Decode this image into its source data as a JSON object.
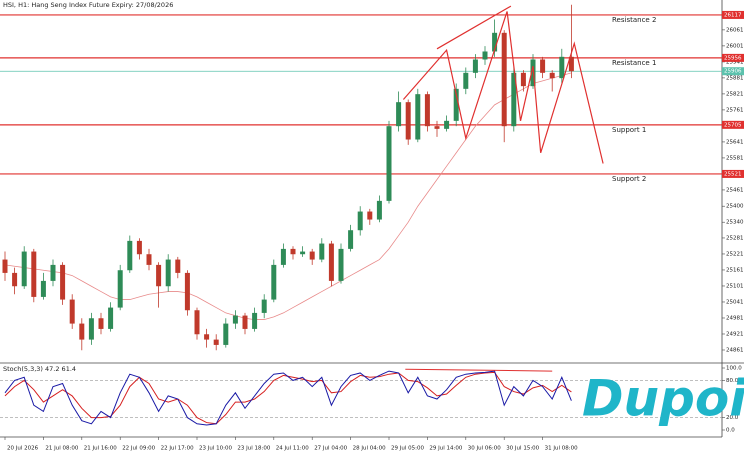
{
  "chart_data": {
    "type": "candlestick",
    "title": "HSI, H1: Hang Seng Index Future Expiry: 27/08/2026",
    "ylim": [
      24816,
      26173
    ],
    "yticks": [
      26061,
      26001,
      25941,
      25881,
      25821,
      25761,
      25641,
      25581,
      25461,
      25400,
      25340,
      25281,
      25221,
      25161,
      25101,
      25041,
      24981,
      24921,
      24861
    ],
    "categories": [
      "20 Jul 2026",
      null,
      null,
      null,
      "21 Jul 08:00",
      null,
      null,
      null,
      "21 Jul 16:00",
      null,
      null,
      null,
      "22 Jul 09:00",
      null,
      null,
      null,
      "22 Jul 17:00",
      null,
      null,
      null,
      "23 Jul 10:00",
      null,
      null,
      null,
      "23 Jul 18:00",
      null,
      null,
      null,
      "24 Jul 11:00",
      null,
      null,
      null,
      "27 Jul 04:00",
      null,
      null,
      null,
      "28 Jul 04:00",
      null,
      null,
      null,
      "29 Jul 05:00",
      null,
      null,
      null,
      "29 Jul 14:00",
      null,
      null,
      null,
      "30 Jul 06:00",
      null,
      null,
      null,
      "30 Jul 15:00",
      null,
      null,
      null,
      "31 Jul 08:00",
      null,
      null,
      null
    ],
    "candles": {
      "up_color": "#2e8b57",
      "down_color": "#c0392b",
      "open": [
        25200,
        25150,
        25100,
        25230,
        25060,
        25120,
        25180,
        25050,
        24960,
        24900,
        24980,
        24940,
        25020,
        25160,
        25270,
        25220,
        25180,
        25100,
        25200,
        25150,
        25010,
        24920,
        24900,
        24880,
        24960,
        24990,
        24940,
        25000,
        25050,
        25180,
        25240,
        25220,
        25230,
        25200,
        25260,
        25120,
        25240,
        25310,
        25380,
        25350,
        25420,
        25700,
        25790,
        25650,
        25820,
        25700,
        25690,
        25720,
        25840,
        25900,
        25950,
        25980,
        26050,
        25700,
        25900,
        25850,
        25950,
        25900,
        25880,
        25960
      ],
      "high": [
        25230,
        25170,
        25250,
        25240,
        25150,
        25200,
        25190,
        25070,
        24980,
        25000,
        25000,
        25040,
        25180,
        25290,
        25280,
        25240,
        25190,
        25220,
        25210,
        25160,
        25020,
        24940,
        24920,
        24980,
        25010,
        25000,
        25020,
        25070,
        25200,
        25260,
        25250,
        25250,
        25240,
        25280,
        25270,
        25260,
        25330,
        25400,
        25390,
        25440,
        25720,
        25830,
        25800,
        25840,
        25830,
        25720,
        25740,
        25860,
        25920,
        25970,
        26000,
        26100,
        26060,
        25920,
        25910,
        25970,
        25960,
        25910,
        25990,
        26155
      ],
      "low": [
        25120,
        25070,
        25090,
        25040,
        25050,
        25100,
        25030,
        24940,
        24860,
        24880,
        24920,
        24930,
        25010,
        25150,
        25200,
        25160,
        25020,
        25080,
        25130,
        24990,
        24900,
        24870,
        24860,
        24870,
        24940,
        24920,
        24930,
        24980,
        25040,
        25170,
        25200,
        25210,
        25180,
        25190,
        25100,
        25110,
        25230,
        25290,
        25330,
        25340,
        25410,
        25680,
        25630,
        25640,
        25680,
        25660,
        25680,
        25700,
        25820,
        25880,
        25930,
        25960,
        25640,
        25680,
        25830,
        25840,
        25880,
        25830,
        25860,
        25880
      ],
      "close": [
        25150,
        25100,
        25230,
        25060,
        25120,
        25180,
        25050,
        24960,
        24900,
        24980,
        24940,
        25020,
        25160,
        25270,
        25220,
        25180,
        25100,
        25200,
        25150,
        25010,
        24920,
        24900,
        24880,
        24960,
        24990,
        24940,
        25000,
        25050,
        25180,
        25240,
        25220,
        25230,
        25200,
        25260,
        25120,
        25240,
        25310,
        25380,
        25350,
        25420,
        25700,
        25790,
        25650,
        25820,
        25700,
        25690,
        25720,
        25840,
        25900,
        25950,
        25980,
        26050,
        25700,
        25900,
        25850,
        25950,
        25900,
        25880,
        25960,
        25906
      ]
    },
    "ma": {
      "color": "#e88a8a",
      "values": [
        25180,
        25175,
        25170,
        25165,
        25160,
        25155,
        25150,
        25140,
        25120,
        25100,
        25080,
        25060,
        25050,
        25050,
        25060,
        25070,
        25075,
        25080,
        25080,
        25075,
        25060,
        25040,
        25020,
        25000,
        24990,
        24980,
        24975,
        24975,
        24985,
        25000,
        25020,
        25040,
        25060,
        25080,
        25100,
        25120,
        25140,
        25160,
        25180,
        25200,
        25240,
        25290,
        25340,
        25400,
        25450,
        25500,
        25550,
        25600,
        25650,
        25700,
        25740,
        25780,
        25800,
        25820,
        25840,
        25860,
        25870,
        25880,
        25890,
        25900
      ]
    },
    "levels": [
      {
        "name": "Resistance 2",
        "value": 26117,
        "color": "#e0302f"
      },
      {
        "name": "Resistance 1",
        "value": 25956,
        "color": "#e0302f"
      },
      {
        "name": "Support 1",
        "value": 25705,
        "color": "#e0302f"
      },
      {
        "name": "Support 2",
        "value": 25521,
        "color": "#e0302f"
      }
    ],
    "price_line": {
      "value": 25906,
      "color": "#5cc2ad"
    },
    "pattern": {
      "color": "#e0302f",
      "x": [
        41.5,
        46,
        48,
        52.3,
        53.7,
        55,
        55.8,
        59.3,
        62.3
      ],
      "y": [
        25800,
        25985,
        25655,
        26130,
        25720,
        25925,
        25600,
        26010,
        25560
      ]
    },
    "trendline": {
      "color": "#e0302f",
      "x": [
        45,
        52.7
      ],
      "y": [
        25990,
        26150
      ]
    },
    "stochastic": {
      "label": "Stoch(5,3,3) 47.2 61.4",
      "ylim": [
        0,
        100
      ],
      "yticks": [
        {
          "value": 100,
          "label": "100.0"
        },
        {
          "value": 80,
          "label": "80.0"
        },
        {
          "value": 20,
          "label": "20.0"
        },
        {
          "value": 0,
          "label": "0.0"
        }
      ],
      "levels": [
        80,
        20
      ],
      "k": {
        "color": "#1a1aa6",
        "values": [
          60,
          80,
          85,
          40,
          30,
          70,
          75,
          40,
          15,
          10,
          30,
          20,
          60,
          90,
          85,
          60,
          30,
          55,
          50,
          20,
          10,
          8,
          10,
          40,
          60,
          35,
          55,
          75,
          90,
          92,
          80,
          85,
          70,
          85,
          40,
          70,
          88,
          92,
          80,
          88,
          95,
          92,
          60,
          85,
          55,
          50,
          65,
          85,
          90,
          92,
          93,
          95,
          40,
          70,
          55,
          80,
          70,
          50,
          85,
          47.2
        ]
      },
      "d": {
        "color": "#d62020",
        "values": [
          55,
          70,
          80,
          65,
          45,
          55,
          65,
          55,
          35,
          20,
          20,
          22,
          40,
          70,
          85,
          75,
          50,
          45,
          50,
          40,
          20,
          12,
          10,
          25,
          45,
          45,
          50,
          62,
          80,
          88,
          85,
          82,
          78,
          80,
          60,
          62,
          78,
          88,
          85,
          86,
          90,
          92,
          80,
          78,
          68,
          55,
          58,
          72,
          85,
          90,
          92,
          93,
          70,
          62,
          58,
          68,
          72,
          62,
          72,
          61.4
        ]
      },
      "trendline": {
        "color": "#e0302f",
        "x": [
          41.7,
          57
        ],
        "y": [
          98,
          95
        ]
      }
    }
  },
  "watermark": "Dupoin"
}
